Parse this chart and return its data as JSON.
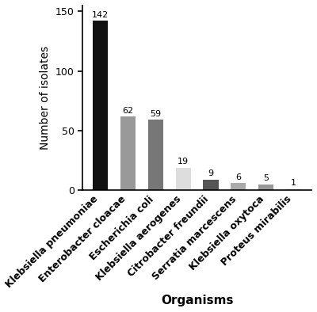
{
  "categories": [
    "Klebsiella pneumoniae",
    "Enterobacter cloacae",
    "Escherichia coli",
    "Klebsiella aerogenes",
    "Citrobacter freundii",
    "Serratia marcescens",
    "Klebsiella oxytoca",
    "Proteus mirabilis"
  ],
  "values": [
    142,
    62,
    59,
    19,
    9,
    6,
    5,
    1
  ],
  "bar_colors": [
    "#111111",
    "#999999",
    "#777777",
    "#dddddd",
    "#555555",
    "#aaaaaa",
    "#999999",
    "#bbbbbb"
  ],
  "ylabel": "Number of isolates",
  "xlabel": "Organisms",
  "ylim": [
    0,
    155
  ],
  "yticks": [
    0,
    50,
    100,
    150
  ],
  "background_color": "#ffffff",
  "ylabel_fontsize": 10,
  "xlabel_fontsize": 11,
  "tick_fontsize": 9,
  "bar_label_fontsize": 8,
  "bar_width": 0.55
}
